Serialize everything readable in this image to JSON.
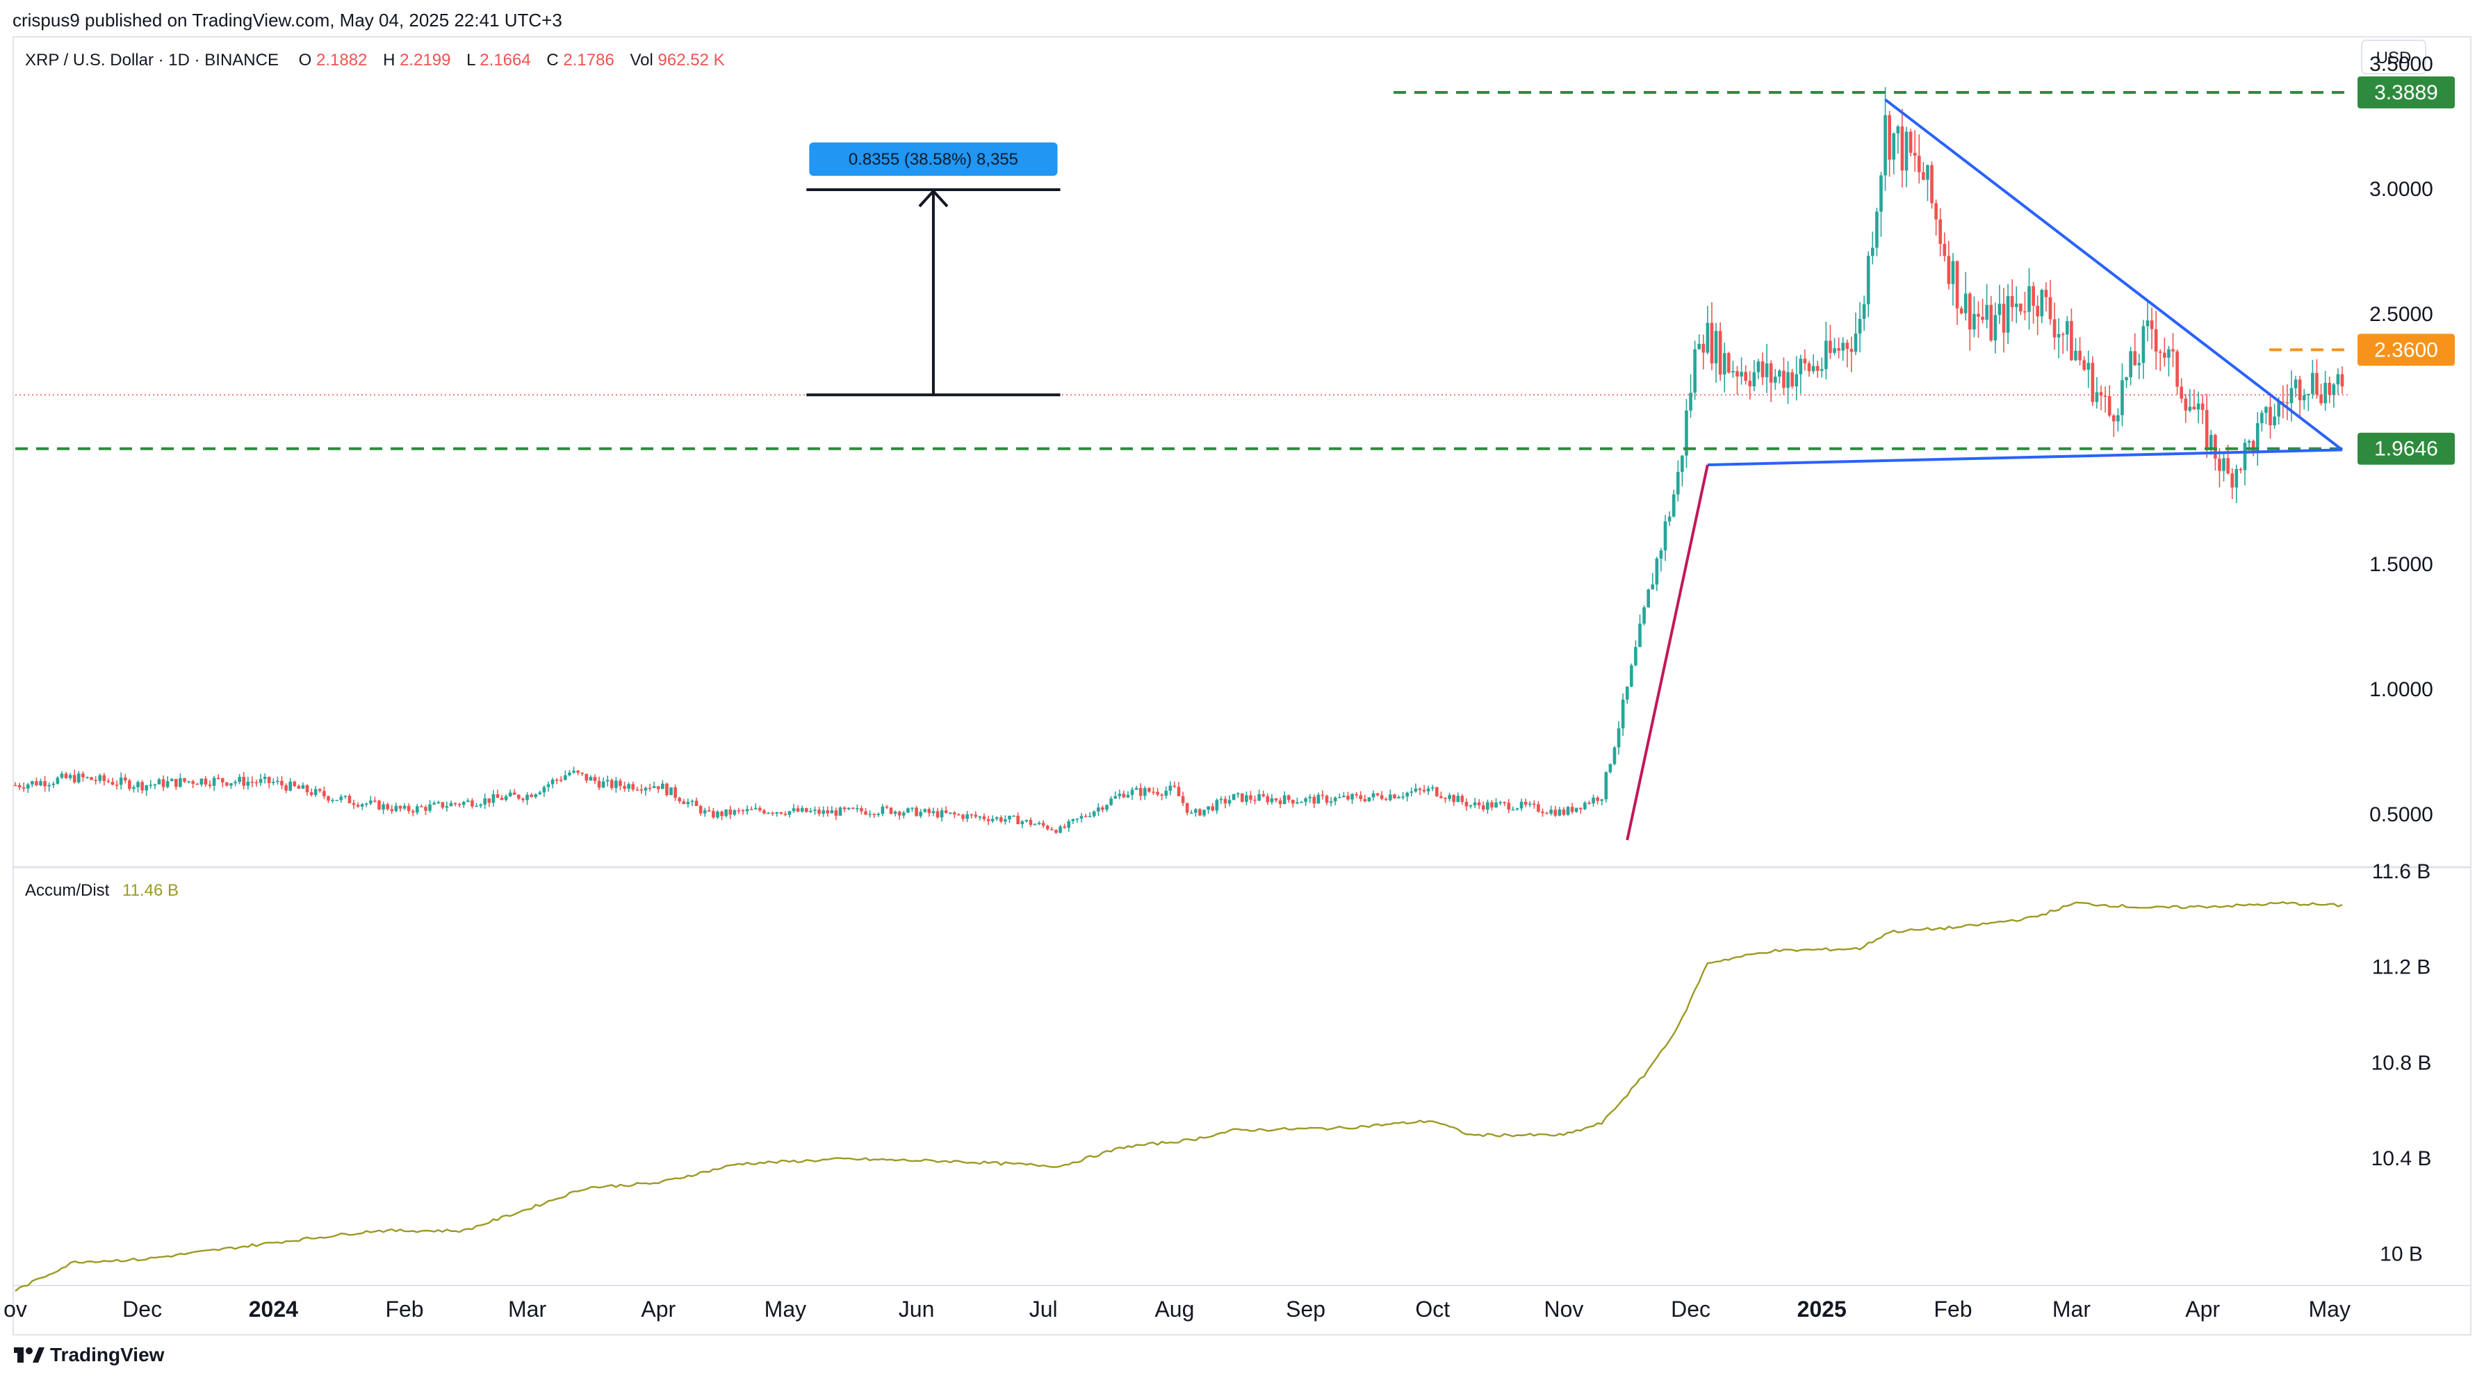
{
  "header": {
    "published_line": "crispus9 published on TradingView.com, May 04, 2025 22:41 UTC+3"
  },
  "legend": {
    "symbol": "XRP / U.S. Dollar · 1D · BINANCE",
    "o_label": "O",
    "o_value": "2.1882",
    "h_label": "H",
    "h_value": "2.2199",
    "l_label": "L",
    "l_value": "2.1664",
    "c_label": "C",
    "c_value": "2.1786",
    "vol_label": "Vol",
    "vol_value": "962.52 K"
  },
  "currency_button": "USD",
  "measure_label": "0.8355 (38.58%) 8,355",
  "indicator": {
    "name": "Accum/Dist",
    "value": "11.46 B"
  },
  "price_axis_ticks": [
    "3.5000",
    "3.0000",
    "2.5000",
    "1.5000",
    "1.0000",
    "0.5000"
  ],
  "price_badges": [
    {
      "text": "3.3889",
      "color": "#2e8b3d"
    },
    {
      "text": "2.3600",
      "color": "#f7931a"
    },
    {
      "text": "1.9646",
      "color": "#2e8b3d"
    }
  ],
  "ad_axis_ticks": [
    "11.6 B",
    "11.2 B",
    "10.8 B",
    "10.4 B",
    "10 B"
  ],
  "time_axis_ticks": [
    {
      "label": "ov",
      "bold": false
    },
    {
      "label": "Dec",
      "bold": false
    },
    {
      "label": "2024",
      "bold": true
    },
    {
      "label": "Feb",
      "bold": false
    },
    {
      "label": "Mar",
      "bold": false
    },
    {
      "label": "Apr",
      "bold": false
    },
    {
      "label": "May",
      "bold": false
    },
    {
      "label": "Jun",
      "bold": false
    },
    {
      "label": "Jul",
      "bold": false
    },
    {
      "label": "Aug",
      "bold": false
    },
    {
      "label": "Sep",
      "bold": false
    },
    {
      "label": "Oct",
      "bold": false
    },
    {
      "label": "Nov",
      "bold": false
    },
    {
      "label": "Dec",
      "bold": false
    },
    {
      "label": "2025",
      "bold": true
    },
    {
      "label": "Feb",
      "bold": false
    },
    {
      "label": "Mar",
      "bold": false
    },
    {
      "label": "Apr",
      "bold": false
    },
    {
      "label": "May",
      "bold": false
    }
  ],
  "footer": {
    "brand": "TradingView"
  },
  "colors": {
    "up": "#26a69a",
    "down": "#ef5350",
    "trendline": "#2962ff",
    "support": "#2e8b3d",
    "resistance_short": "#f7931a",
    "ad_line": "#9c9a22",
    "red_trend": "#c2185b",
    "measure_badge": "#2196f3"
  },
  "chart_data": [
    {
      "type": "line",
      "title": "XRP / U.S. Dollar · 1D · BINANCE",
      "ylabel": "USD",
      "ylim": [
        0.3,
        3.6
      ],
      "x_range": [
        "2023-11-01",
        "2025-05-04"
      ],
      "series": [
        {
          "name": "XRP / U.S. Dollar",
          "x": [
            "2023-11-01",
            "2023-11-15",
            "2023-12-01",
            "2023-12-15",
            "2024-01-01",
            "2024-01-15",
            "2024-02-01",
            "2024-02-15",
            "2024-03-01",
            "2024-03-11",
            "2024-03-20",
            "2024-04-01",
            "2024-04-13",
            "2024-04-25",
            "2024-05-10",
            "2024-05-25",
            "2024-06-10",
            "2024-06-25",
            "2024-07-05",
            "2024-07-20",
            "2024-08-01",
            "2024-08-05",
            "2024-08-15",
            "2024-09-01",
            "2024-09-15",
            "2024-10-01",
            "2024-10-10",
            "2024-10-20",
            "2024-11-01",
            "2024-11-10",
            "2024-11-16",
            "2024-11-22",
            "2024-11-28",
            "2024-12-03",
            "2024-12-10",
            "2024-12-20",
            "2025-01-01",
            "2025-01-10",
            "2025-01-16",
            "2025-01-25",
            "2025-02-03",
            "2025-02-10",
            "2025-02-20",
            "2025-03-02",
            "2025-03-10",
            "2025-03-20",
            "2025-04-01",
            "2025-04-07",
            "2025-04-15",
            "2025-04-25",
            "2025-05-04"
          ],
          "values": [
            0.62,
            0.65,
            0.62,
            0.64,
            0.63,
            0.57,
            0.52,
            0.55,
            0.58,
            0.67,
            0.62,
            0.62,
            0.5,
            0.52,
            0.51,
            0.52,
            0.5,
            0.48,
            0.44,
            0.59,
            0.6,
            0.5,
            0.57,
            0.56,
            0.57,
            0.6,
            0.54,
            0.54,
            0.51,
            0.58,
            1.0,
            1.45,
            1.85,
            2.45,
            2.3,
            2.25,
            2.3,
            2.45,
            3.25,
            3.05,
            2.55,
            2.45,
            2.6,
            2.35,
            2.1,
            2.45,
            2.05,
            1.85,
            2.05,
            2.25,
            2.18
          ]
        }
      ],
      "annotations": [
        {
          "kind": "horizontal",
          "value": 3.3889
        },
        {
          "kind": "horizontal",
          "value": 1.9646
        },
        {
          "kind": "horizontal",
          "value": 2.36
        },
        {
          "kind": "measure",
          "from": 2.18,
          "to": 3.0,
          "label": "0.8355 (38.58%) 8,355"
        }
      ]
    },
    {
      "type": "line",
      "title": "Accum/Dist",
      "ylim": [
        9.9,
        11.6
      ],
      "unit": "B",
      "series": [
        {
          "name": "Accum/Dist",
          "x": [
            "2023-11-01",
            "2023-11-15",
            "2023-12-01",
            "2024-01-01",
            "2024-01-25",
            "2024-02-15",
            "2024-03-01",
            "2024-03-15",
            "2024-04-01",
            "2024-04-20",
            "2024-05-15",
            "2024-06-10",
            "2024-07-05",
            "2024-07-20",
            "2024-08-05",
            "2024-08-15",
            "2024-09-10",
            "2024-10-01",
            "2024-10-10",
            "2024-11-01",
            "2024-11-10",
            "2024-11-20",
            "2024-11-28",
            "2024-12-05",
            "2024-12-20",
            "2025-01-10",
            "2025-01-17",
            "2025-02-03",
            "2025-02-20",
            "2025-03-02",
            "2025-03-20",
            "2025-04-10",
            "2025-04-20",
            "2025-05-04"
          ],
          "values": [
            9.85,
            9.97,
            9.98,
            10.05,
            10.1,
            10.1,
            10.19,
            10.28,
            10.3,
            10.38,
            10.4,
            10.39,
            10.37,
            10.45,
            10.48,
            10.52,
            10.53,
            10.56,
            10.5,
            10.5,
            10.55,
            10.75,
            10.95,
            11.22,
            11.27,
            11.28,
            11.35,
            11.37,
            11.41,
            11.47,
            11.45,
            11.46,
            11.47,
            11.46
          ]
        }
      ]
    }
  ]
}
